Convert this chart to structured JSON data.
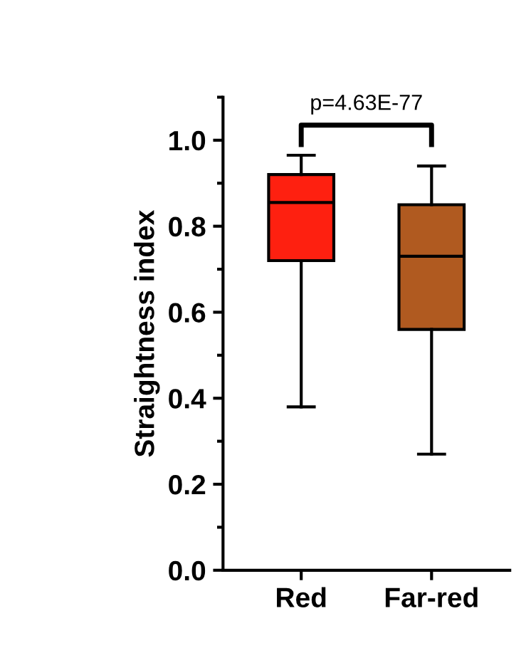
{
  "chart_data": {
    "type": "box",
    "ylabel": "Straightness index",
    "categories": [
      "Red",
      "Far-red"
    ],
    "boxes": [
      {
        "low": 0.38,
        "q1": 0.72,
        "median": 0.855,
        "q3": 0.92,
        "high": 0.965
      },
      {
        "low": 0.27,
        "q1": 0.56,
        "median": 0.73,
        "q3": 0.85,
        "high": 0.94
      }
    ],
    "colors": [
      "#fe2010",
      "#b05a20"
    ],
    "ylim": [
      0,
      1.1
    ],
    "yticks": [
      {
        "value": 0,
        "label": "0.0"
      },
      0.2,
      0.4,
      0.6,
      0.8,
      {
        "value": 1.0,
        "label": "1.0"
      }
    ],
    "grid": false,
    "annotations": [
      "p=4.63E-77"
    ]
  }
}
